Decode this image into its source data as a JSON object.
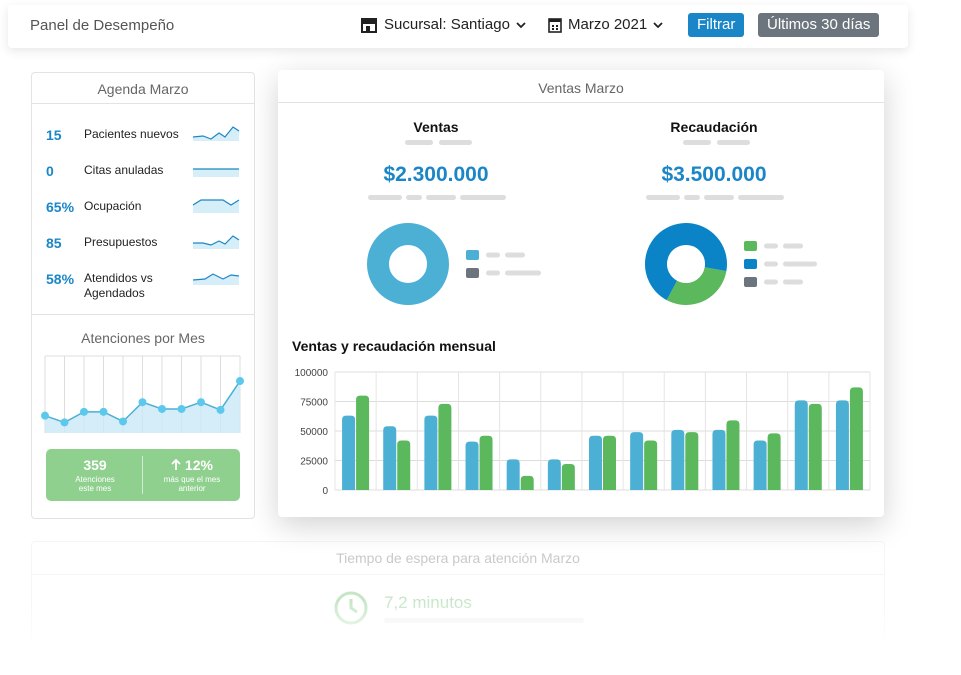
{
  "header": {
    "title": "Panel de Desempeño",
    "branch": "Sucursal: Santiago",
    "period": "Marzo 2021",
    "filter_button": "Filtrar",
    "range_button": "Últimos 30 días"
  },
  "agenda": {
    "title": "Agenda Marzo",
    "items": [
      {
        "value": "15",
        "label": "Pacientes nuevos"
      },
      {
        "value": "0",
        "label": "Citas anuladas"
      },
      {
        "value": "65%",
        "label": "Ocupación"
      },
      {
        "value": "85",
        "label": "Presupuestos"
      },
      {
        "value": "58%",
        "label": "Atendidos vs Agendados"
      }
    ]
  },
  "monthly_attentions": {
    "title": "Atenciones por Mes",
    "chart_data": {
      "type": "line",
      "values": [
        18,
        11,
        22,
        22,
        12,
        32,
        25,
        25,
        32,
        24,
        54
      ],
      "ylim": [
        0,
        80
      ],
      "color": "#5bc8ec"
    },
    "total": "359",
    "total_label": "Atenciones este mes",
    "change": "12%",
    "change_label": "más que el mes anterior"
  },
  "sales": {
    "title": "Ventas Marzo",
    "sales": {
      "title": "Ventas",
      "amount": "$2.300.000",
      "chart_data": {
        "type": "pie",
        "values": [
          100,
          0
        ],
        "colors": [
          "#4bb0d4",
          "#6c757d"
        ]
      }
    },
    "collections": {
      "title": "Recaudación",
      "amount": "$3.500.000",
      "chart_data": {
        "type": "pie",
        "values": [
          30,
          70,
          0
        ],
        "colors": [
          "#5cb85c",
          "#0a84c6",
          "#6c757d"
        ]
      }
    },
    "monthly": {
      "title": "Ventas y recaudación mensual",
      "chart_data": {
        "type": "bar",
        "categories": [
          null,
          null,
          null,
          null,
          null,
          null,
          null,
          null,
          null,
          null,
          null,
          null,
          null
        ],
        "series": [
          {
            "color": "#4bb0d4",
            "values": [
              63000,
              54000,
              63000,
              41000,
              26000,
              26000,
              46000,
              49000,
              51000,
              51000,
              42000,
              76000,
              76000
            ]
          },
          {
            "color": "#5cb85c",
            "values": [
              80000,
              42000,
              73000,
              46000,
              12000,
              22000,
              46000,
              42000,
              49000,
              59000,
              48000,
              73000,
              87000
            ]
          }
        ],
        "ylim": [
          0,
          100000
        ],
        "yticks": [
          0,
          25000,
          50000,
          75000,
          100000
        ],
        "grid": true
      }
    }
  },
  "wait": {
    "title": "Tiempo de espera para atención Marzo",
    "value": "7,2 minutos"
  }
}
